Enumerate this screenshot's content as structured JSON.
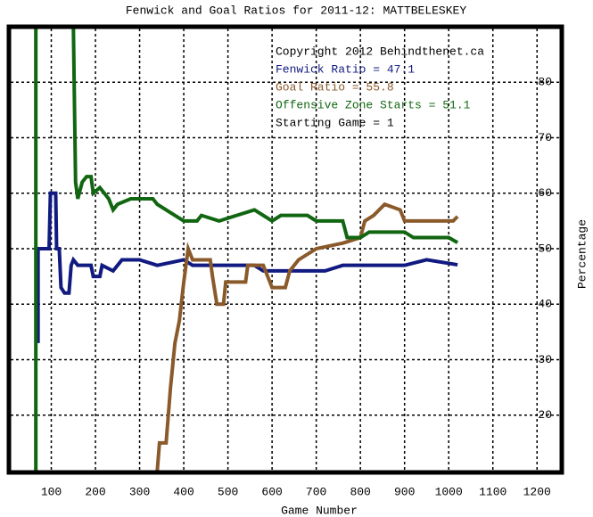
{
  "chart_data": {
    "type": "line",
    "title": "Fenwick and Goal Ratios for 2011-12: MATTBELESKEY",
    "x_label": "Game Number",
    "y_label": "Percentage",
    "xlim": [
      0,
      1250
    ],
    "ylim": [
      10,
      90
    ],
    "xticks": [
      100,
      200,
      300,
      400,
      500,
      600,
      700,
      800,
      900,
      1000,
      1100,
      1200
    ],
    "yticks": [
      20,
      30,
      40,
      50,
      60,
      70,
      80
    ],
    "grid": true,
    "annotations": [
      {
        "text": "Copyright 2012 Behindthenet.ca",
        "color": "#000000"
      },
      {
        "text": "Fenwick Ratio = 47.1",
        "color": "#101a80"
      },
      {
        "text": "Goal Ratio = 55.8",
        "color": "#8b5a2b"
      },
      {
        "text": "Offensive Zone Starts = 51.1",
        "color": "#116611"
      },
      {
        "text": "Starting Game = 1",
        "color": "#000000"
      }
    ],
    "series": [
      {
        "color": "#101a80",
        "x": [
          70,
          70,
          75,
          95,
          98,
          110,
          112,
          118,
          122,
          130,
          140,
          145,
          150,
          160,
          175,
          190,
          195,
          210,
          215,
          240,
          260,
          300,
          340,
          400,
          420,
          560,
          580,
          720,
          760,
          900,
          950,
          1020
        ],
        "values": [
          33,
          50,
          50,
          50,
          60,
          60,
          50,
          50,
          43,
          42,
          42,
          47,
          48,
          47,
          47,
          47,
          45,
          45,
          47,
          46,
          48,
          48,
          47,
          48,
          47,
          47,
          46,
          46,
          47,
          47,
          48,
          47.1
        ]
      },
      {
        "color": "#8b5a2b",
        "x": [
          340,
          345,
          360,
          370,
          380,
          390,
          400,
          410,
          420,
          460,
          465,
          475,
          490,
          495,
          540,
          545,
          580,
          590,
          600,
          630,
          640,
          660,
          700,
          760,
          800,
          810,
          830,
          855,
          890,
          900,
          1010,
          1020
        ],
        "values": [
          10,
          15,
          15,
          25,
          33,
          37,
          44,
          50,
          48,
          48,
          45,
          40,
          40,
          44,
          44,
          47,
          47,
          45,
          43,
          43,
          46,
          48,
          50,
          51,
          52,
          55,
          56,
          58,
          57,
          55,
          55,
          55.8
        ]
      },
      {
        "color": "#116611",
        "x": [
          65,
          65,
          150,
          155,
          160,
          170,
          180,
          190,
          195,
          210,
          230,
          240,
          250,
          280,
          330,
          340,
          380,
          400,
          430,
          440,
          480,
          520,
          560,
          600,
          620,
          680,
          700,
          760,
          770,
          800,
          820,
          900,
          920,
          1000,
          1020
        ],
        "values": [
          10,
          90,
          90,
          62,
          59,
          62,
          63,
          63,
          60,
          61,
          59,
          57,
          58,
          59,
          59,
          58,
          56,
          55,
          55,
          56,
          55,
          56,
          57,
          55,
          56,
          56,
          55,
          55,
          52,
          52,
          53,
          53,
          52,
          52,
          51.1
        ]
      }
    ]
  }
}
